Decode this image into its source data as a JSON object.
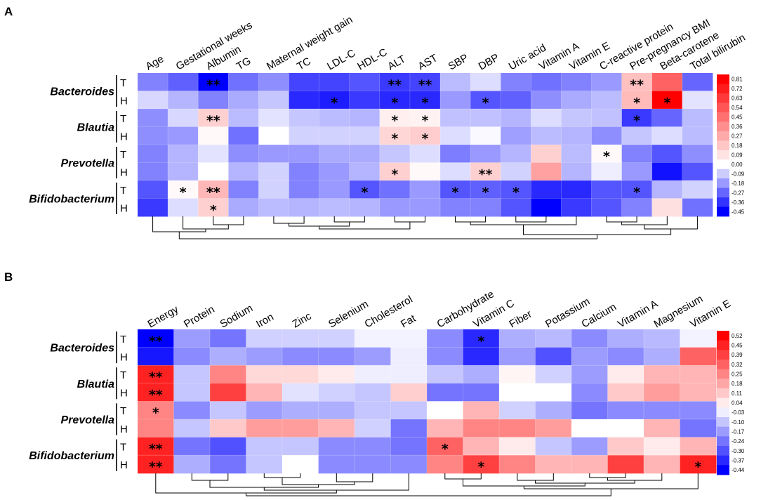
{
  "chart_data": [
    {
      "type": "heatmap",
      "panel": "A",
      "columns": [
        "Age",
        "Gestational weeks",
        "Albumin",
        "TG",
        "Maternal weight gain",
        "TC",
        "LDL-C",
        "HDL-C",
        "ALT",
        "AST",
        "SBP",
        "DBP",
        "Uric acid",
        "Vitamin A",
        "Vitamin E",
        "C-reactive protein",
        "Pre-pregnancy BMI",
        "Beta-carotene",
        "Total bilirubin"
      ],
      "groups": [
        "Bacteroides",
        "Blautia",
        "Prevotella",
        "Bifidobacterium"
      ],
      "subrows": [
        "T",
        "H"
      ],
      "values": [
        [
          -0.22,
          -0.28,
          -0.45,
          -0.25,
          -0.2,
          -0.33,
          -0.33,
          -0.3,
          -0.35,
          -0.33,
          -0.12,
          -0.06,
          -0.22,
          -0.25,
          -0.22,
          -0.18,
          0.2,
          0.5,
          -0.27
        ],
        [
          -0.07,
          -0.13,
          -0.22,
          -0.15,
          -0.1,
          -0.38,
          -0.4,
          -0.35,
          -0.38,
          -0.38,
          -0.18,
          -0.3,
          -0.28,
          -0.2,
          -0.15,
          -0.12,
          0.22,
          0.81,
          -0.05
        ],
        [
          -0.2,
          -0.07,
          0.15,
          -0.12,
          -0.05,
          -0.1,
          -0.12,
          -0.13,
          0.05,
          0.04,
          -0.11,
          -0.11,
          -0.13,
          -0.06,
          -0.1,
          -0.11,
          -0.35,
          -0.27,
          -0.12
        ],
        [
          -0.2,
          -0.18,
          0.02,
          -0.25,
          0.0,
          -0.08,
          -0.08,
          -0.08,
          0.13,
          0.16,
          -0.06,
          -0.01,
          -0.17,
          -0.12,
          -0.13,
          -0.2,
          -0.1,
          -0.06,
          -0.12
        ],
        [
          -0.22,
          -0.13,
          -0.05,
          -0.2,
          -0.18,
          -0.18,
          -0.15,
          -0.15,
          -0.1,
          -0.06,
          -0.23,
          -0.18,
          -0.13,
          0.15,
          -0.12,
          0.02,
          -0.22,
          -0.3,
          -0.2
        ],
        [
          -0.22,
          -0.13,
          0.0,
          -0.13,
          -0.08,
          -0.22,
          -0.18,
          -0.13,
          0.15,
          0.02,
          -0.06,
          0.15,
          -0.08,
          0.3,
          -0.13,
          -0.03,
          -0.18,
          -0.42,
          -0.3
        ],
        [
          -0.3,
          0.02,
          0.23,
          -0.22,
          -0.08,
          -0.22,
          -0.18,
          -0.3,
          -0.25,
          -0.18,
          -0.3,
          -0.28,
          -0.3,
          -0.38,
          -0.38,
          -0.3,
          -0.3,
          -0.13,
          -0.08
        ],
        [
          -0.35,
          -0.06,
          0.15,
          -0.15,
          -0.12,
          -0.13,
          -0.12,
          -0.13,
          -0.18,
          -0.18,
          -0.22,
          -0.22,
          -0.3,
          -0.45,
          -0.35,
          -0.3,
          -0.22,
          0.1,
          -0.25
        ]
      ],
      "significance": [
        [
          "",
          "",
          "**",
          "",
          "",
          "",
          "",
          "",
          "**",
          "**",
          "",
          "",
          "",
          "",
          "",
          "",
          "**",
          "",
          ""
        ],
        [
          "",
          "",
          "",
          "",
          "",
          "",
          "*",
          "",
          "*",
          "*",
          "",
          "*",
          "",
          "",
          "",
          "",
          "*",
          "*",
          ""
        ],
        [
          "",
          "",
          "**",
          "",
          "",
          "",
          "",
          "",
          "*",
          "*",
          "",
          "",
          "",
          "",
          "",
          "",
          "*",
          "",
          ""
        ],
        [
          "",
          "",
          "",
          "",
          "",
          "",
          "",
          "",
          "*",
          "*",
          "",
          "",
          "",
          "",
          "",
          "",
          "",
          "",
          ""
        ],
        [
          "",
          "",
          "",
          "",
          "",
          "",
          "",
          "",
          "",
          "",
          "",
          "",
          "",
          "",
          "",
          "*",
          "",
          "",
          ""
        ],
        [
          "",
          "",
          "",
          "",
          "",
          "",
          "",
          "",
          "*",
          "",
          "",
          "**",
          "",
          "",
          "",
          "",
          "",
          "",
          ""
        ],
        [
          "",
          "*",
          "**",
          "",
          "",
          "",
          "",
          "*",
          "",
          "",
          "*",
          "*",
          "*",
          "",
          "",
          "",
          "*",
          "",
          ""
        ],
        [
          "",
          "",
          "*",
          "",
          "",
          "",
          "",
          "",
          "",
          "",
          "",
          "",
          "",
          "",
          "",
          "",
          "",
          "",
          ""
        ]
      ],
      "legend_ticks": [
        0.81,
        0.72,
        0.63,
        0.54,
        0.45,
        0.36,
        0.27,
        0.18,
        0.09,
        0.0,
        -0.09,
        -0.18,
        -0.27,
        -0.36,
        -0.45
      ],
      "legend_tick_labels": [
        "0.81",
        "0.72",
        "0.63",
        "0.54",
        "0.45",
        "0.36",
        "0.27",
        "0.18",
        "0.09",
        "0.00",
        "-0.09",
        "-0.18",
        "-0.27",
        "-0.36",
        "-0.45"
      ],
      "vmin": -0.45,
      "vmax": 0.81
    },
    {
      "type": "heatmap",
      "panel": "B",
      "columns": [
        "Energy",
        "Protein",
        "Sodium",
        "Iron",
        "Zinc",
        "Selenium",
        "Cholesterol",
        "Fat",
        "Carbohydrate",
        "Vitamin C",
        "Fiber",
        "Potassium",
        "Calcium",
        "Vitamin A",
        "Magnesium",
        "Vitamin E"
      ],
      "groups": [
        "Bacteroides",
        "Blautia",
        "Prevotella",
        "Bifidobacterium"
      ],
      "subrows": [
        "T",
        "H"
      ],
      "values": [
        [
          -0.44,
          -0.17,
          -0.24,
          -0.08,
          -0.08,
          -0.08,
          -0.02,
          -0.02,
          -0.2,
          -0.37,
          -0.14,
          -0.12,
          -0.2,
          -0.14,
          -0.12,
          -0.02
        ],
        [
          -0.4,
          -0.2,
          -0.14,
          -0.17,
          -0.2,
          -0.2,
          -0.17,
          -0.03,
          -0.2,
          -0.37,
          -0.17,
          -0.3,
          -0.17,
          -0.2,
          -0.14,
          0.32
        ],
        [
          0.45,
          -0.1,
          0.25,
          0.08,
          0.08,
          0.04,
          -0.03,
          -0.03,
          -0.1,
          -0.14,
          0.02,
          -0.08,
          -0.17,
          0.04,
          0.15,
          0.15
        ],
        [
          0.45,
          -0.1,
          0.39,
          0.15,
          -0.05,
          -0.08,
          -0.1,
          0.1,
          -0.24,
          -0.24,
          0.0,
          0.0,
          -0.2,
          0.11,
          0.2,
          0.15
        ],
        [
          0.25,
          -0.2,
          -0.1,
          -0.17,
          -0.14,
          -0.14,
          -0.1,
          -0.1,
          0.0,
          0.15,
          -0.08,
          -0.14,
          -0.24,
          -0.2,
          -0.2,
          -0.2
        ],
        [
          0.25,
          -0.1,
          0.11,
          0.2,
          0.2,
          0.15,
          -0.08,
          -0.24,
          0.15,
          0.25,
          0.25,
          0.2,
          0.0,
          0.0,
          0.15,
          -0.24
        ],
        [
          0.45,
          -0.24,
          -0.3,
          -0.1,
          -0.1,
          -0.2,
          -0.2,
          -0.24,
          0.32,
          0.15,
          0.04,
          -0.1,
          -0.17,
          0.11,
          0.04,
          0.15
        ],
        [
          0.45,
          -0.14,
          -0.24,
          -0.1,
          0.0,
          -0.2,
          -0.2,
          -0.2,
          0.25,
          0.39,
          0.25,
          0.15,
          0.15,
          0.39,
          0.15,
          0.45
        ]
      ],
      "significance": [
        [
          "**",
          "",
          "",
          "",
          "",
          "",
          "",
          "",
          "",
          "*",
          "",
          "",
          "",
          "",
          "",
          ""
        ],
        [
          "",
          "",
          "",
          "",
          "",
          "",
          "",
          "",
          "",
          "",
          "",
          "",
          "",
          "",
          "",
          ""
        ],
        [
          "**",
          "",
          "",
          "",
          "",
          "",
          "",
          "",
          "",
          "",
          "",
          "",
          "",
          "",
          "",
          ""
        ],
        [
          "**",
          "",
          "",
          "",
          "",
          "",
          "",
          "",
          "",
          "",
          "",
          "",
          "",
          "",
          "",
          ""
        ],
        [
          "*",
          "",
          "",
          "",
          "",
          "",
          "",
          "",
          "",
          "",
          "",
          "",
          "",
          "",
          "",
          ""
        ],
        [
          "",
          "",
          "",
          "",
          "",
          "",
          "",
          "",
          "",
          "",
          "",
          "",
          "",
          "",
          "",
          ""
        ],
        [
          "**",
          "",
          "",
          "",
          "",
          "",
          "",
          "",
          "*",
          "",
          "",
          "",
          "",
          "",
          "",
          ""
        ],
        [
          "**",
          "",
          "",
          "",
          "",
          "",
          "",
          "",
          "",
          "*",
          "",
          "",
          "",
          "",
          "",
          "*"
        ]
      ],
      "legend_ticks": [
        0.52,
        0.45,
        0.39,
        0.32,
        0.25,
        0.18,
        0.11,
        0.04,
        -0.03,
        -0.1,
        -0.17,
        -0.24,
        -0.3,
        -0.37,
        -0.44
      ],
      "legend_tick_labels": [
        "0.52",
        "0.45",
        "0.39",
        "0.32",
        "0.25",
        "0.18",
        "0.11",
        "0.04",
        "-0.03",
        "-0.10",
        "-0.17",
        "-0.24",
        "-0.30",
        "-0.37",
        "-0.44"
      ],
      "vmin": -0.44,
      "vmax": 0.52
    }
  ],
  "panel_letters": [
    "A",
    "B"
  ],
  "colors": {
    "low": "#0000ff",
    "mid": "#ffffff",
    "high": "#ff0000"
  }
}
